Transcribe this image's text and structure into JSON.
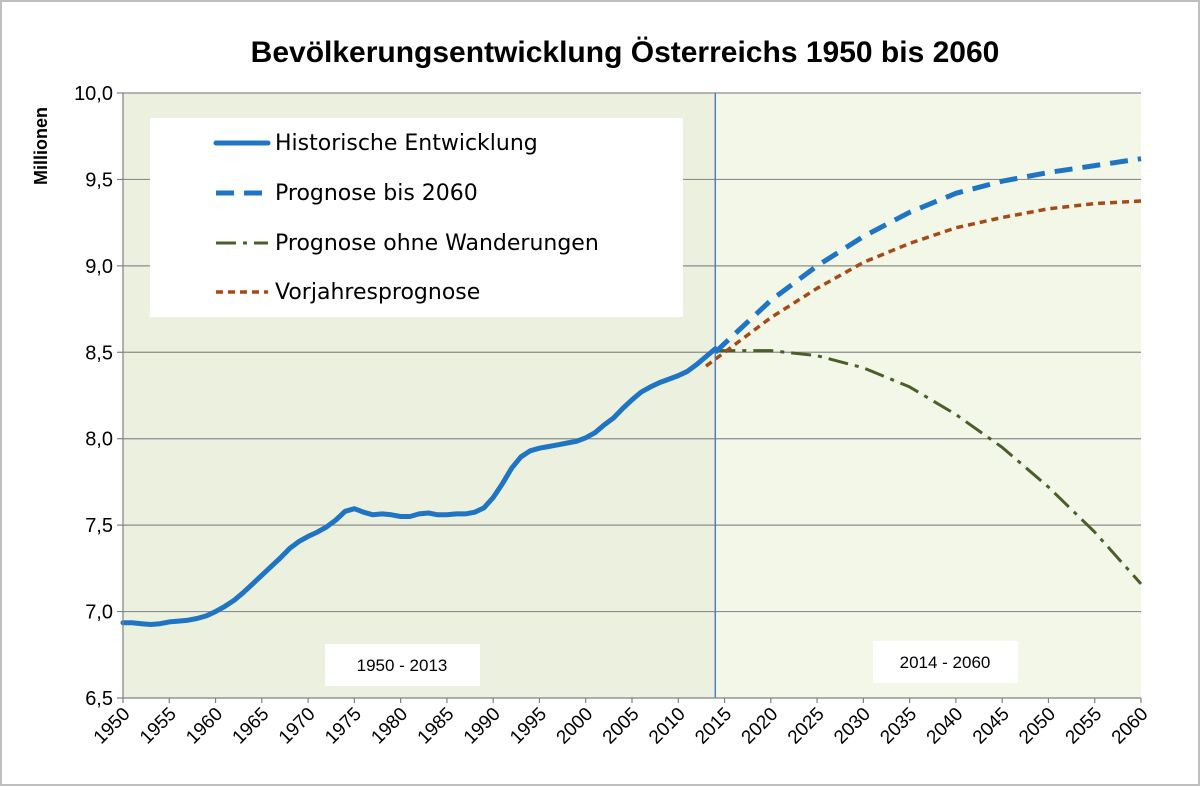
{
  "chart_data": {
    "type": "line",
    "title": "Bevölkerungsentwicklung  Österreichs 1950 bis 2060",
    "xlabel": "",
    "ylabel": "Millionen",
    "xlim": [
      1950,
      2060
    ],
    "ylim": [
      6.5,
      10.0
    ],
    "y_ticks": [
      "6,5",
      "7,0",
      "7,5",
      "8,0",
      "8,5",
      "9,0",
      "9,5",
      "10,0"
    ],
    "x_ticks": [
      "1950",
      "1955",
      "1960",
      "1965",
      "1970",
      "1975",
      "1980",
      "1985",
      "1990",
      "1995",
      "2000",
      "2005",
      "2010",
      "2015",
      "2020",
      "2025",
      "2030",
      "2035",
      "2040",
      "2045",
      "2050",
      "2055",
      "2060"
    ],
    "grid": "horizontal",
    "legend_position": "top-left",
    "divider_year": 2014,
    "period_labels": [
      {
        "text": "1950 - 2013"
      },
      {
        "text": "2014 - 2060"
      }
    ],
    "colors": {
      "plot_left_bg": "#ebf1de",
      "plot_right_bg": "#f2f7e8",
      "historic": "#1f74c4",
      "forecast": "#1f74c4",
      "no_migration": "#4a5e28",
      "previous_forecast": "#a64a18",
      "divider": "#4f81bd"
    },
    "series": [
      {
        "name": "Historische Entwicklung",
        "style": "solid",
        "x": [
          1950,
          1951,
          1952,
          1953,
          1954,
          1955,
          1956,
          1957,
          1958,
          1959,
          1960,
          1961,
          1962,
          1963,
          1964,
          1965,
          1966,
          1967,
          1968,
          1969,
          1970,
          1971,
          1972,
          1973,
          1974,
          1975,
          1976,
          1977,
          1978,
          1979,
          1980,
          1981,
          1982,
          1983,
          1984,
          1985,
          1986,
          1987,
          1988,
          1989,
          1990,
          1991,
          1992,
          1993,
          1994,
          1995,
          1996,
          1997,
          1998,
          1999,
          2000,
          2001,
          2002,
          2003,
          2004,
          2005,
          2006,
          2007,
          2008,
          2009,
          2010,
          2011,
          2012,
          2013,
          2014
        ],
        "y": [
          6.935,
          6.935,
          6.93,
          6.925,
          6.93,
          6.94,
          6.945,
          6.95,
          6.96,
          6.975,
          7.0,
          7.03,
          7.065,
          7.11,
          7.16,
          7.21,
          7.26,
          7.31,
          7.365,
          7.405,
          7.435,
          7.46,
          7.49,
          7.53,
          7.58,
          7.595,
          7.575,
          7.56,
          7.565,
          7.56,
          7.55,
          7.55,
          7.565,
          7.57,
          7.56,
          7.56,
          7.565,
          7.565,
          7.575,
          7.6,
          7.66,
          7.74,
          7.83,
          7.895,
          7.93,
          7.945,
          7.955,
          7.965,
          7.975,
          7.985,
          8.005,
          8.035,
          8.08,
          8.12,
          8.175,
          8.225,
          8.27,
          8.3,
          8.325,
          8.345,
          8.365,
          8.39,
          8.43,
          8.475,
          8.52
        ]
      },
      {
        "name": "Prognose bis 2060",
        "style": "dashed",
        "x": [
          2014,
          2015,
          2020,
          2025,
          2030,
          2035,
          2040,
          2045,
          2050,
          2055,
          2060
        ],
        "y": [
          8.5,
          8.55,
          8.8,
          9.0,
          9.17,
          9.31,
          9.42,
          9.49,
          9.54,
          9.58,
          9.62
        ]
      },
      {
        "name": "Prognose ohne Wanderungen",
        "style": "dashdot",
        "x": [
          2014,
          2015,
          2020,
          2025,
          2030,
          2035,
          2040,
          2045,
          2050,
          2055,
          2060
        ],
        "y": [
          8.51,
          8.51,
          8.51,
          8.48,
          8.41,
          8.3,
          8.14,
          7.95,
          7.72,
          7.46,
          7.16
        ]
      },
      {
        "name": "Vorjahresprognose",
        "style": "dotted",
        "x": [
          2013,
          2015,
          2020,
          2025,
          2030,
          2035,
          2040,
          2045,
          2050,
          2055,
          2060
        ],
        "y": [
          8.42,
          8.5,
          8.7,
          8.87,
          9.02,
          9.13,
          9.22,
          9.28,
          9.33,
          9.36,
          9.375
        ]
      }
    ]
  }
}
